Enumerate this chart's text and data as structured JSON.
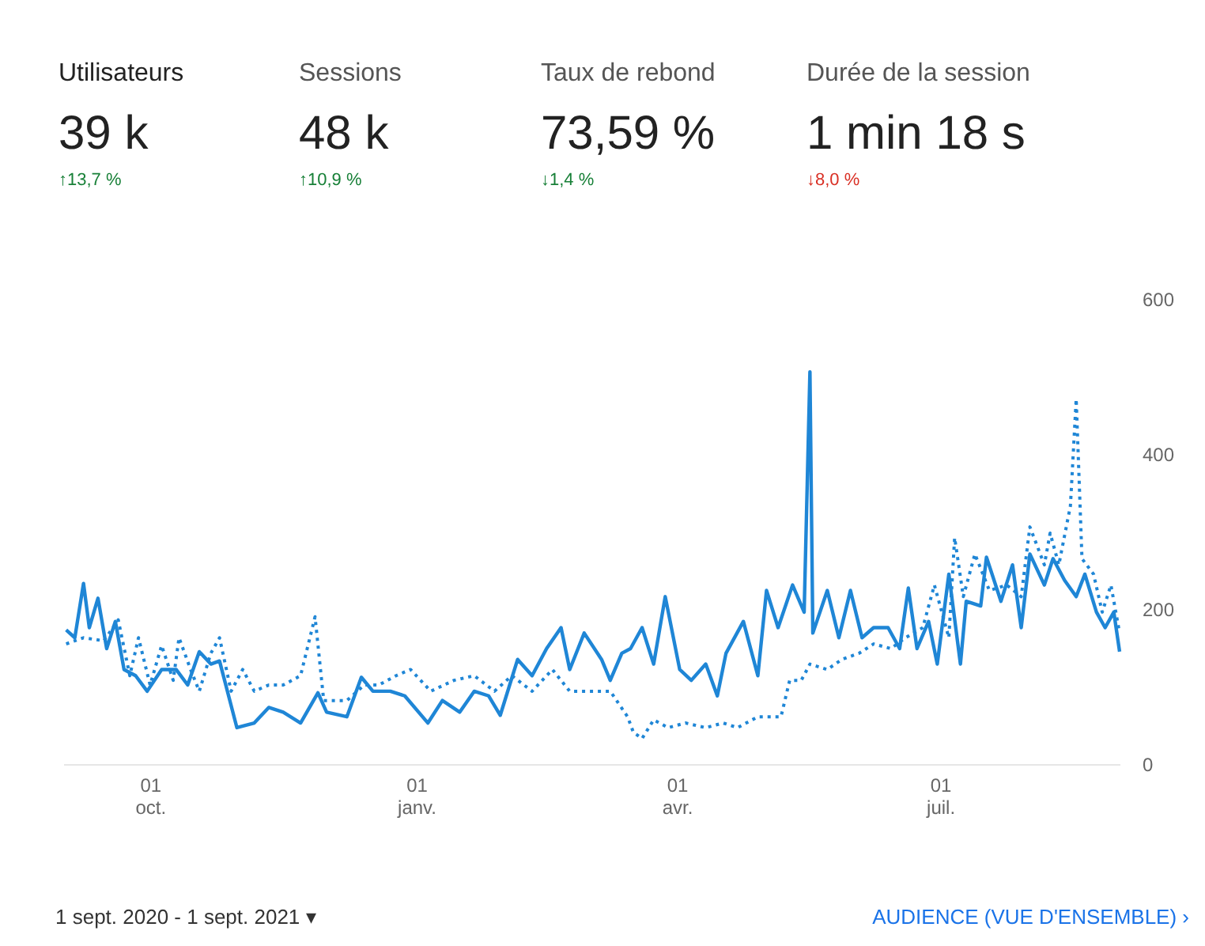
{
  "chart_data": {
    "type": "line",
    "annotations": [
      "Utilisateurs",
      "39 k",
      "↑13,7 %",
      "Sessions",
      "48 k",
      "↑10,9 %",
      "Taux de rebond",
      "73,59 %",
      "↓1,4 %",
      "Durée de la session",
      "1 min 18 s",
      "↓8,0 %",
      "1 sept. 2020 - 1 sept. 2021 ▾",
      "AUDIENCE (VUE D'ENSEMBLE) ›"
    ],
    "xlim": [
      "2020-09-01",
      "2021-09-01"
    ],
    "xticks": [
      {
        "value": "2020-10-01",
        "label": "01\noct."
      },
      {
        "value": "2021-01-01",
        "label": "01\njanv."
      },
      {
        "value": "2021-04-01",
        "label": "01\navr."
      },
      {
        "value": "2021-07-01",
        "label": "01\njuil."
      }
    ],
    "ylim": [
      0,
      600
    ],
    "yticks": [
      0,
      200,
      400,
      600
    ],
    "grid": false,
    "series": [
      {
        "color": "#1f86d6",
        "line_style": "solid",
        "x": [
          "2020-09-02",
          "2020-09-05",
          "2020-09-08",
          "2020-09-10",
          "2020-09-13",
          "2020-09-16",
          "2020-09-19",
          "2020-09-22",
          "2020-09-26",
          "2020-09-30",
          "2020-10-05",
          "2020-10-10",
          "2020-10-14",
          "2020-10-18",
          "2020-10-22",
          "2020-10-25",
          "2020-10-31",
          "2020-11-06",
          "2020-11-11",
          "2020-11-16",
          "2020-11-22",
          "2020-11-28",
          "2020-12-01",
          "2020-12-08",
          "2020-12-13",
          "2020-12-17",
          "2020-12-23",
          "2020-12-28",
          "2021-01-05",
          "2021-01-10",
          "2021-01-16",
          "2021-01-21",
          "2021-01-26",
          "2021-01-30",
          "2021-02-05",
          "2021-02-10",
          "2021-02-15",
          "2021-02-20",
          "2021-02-23",
          "2021-02-28",
          "2021-03-06",
          "2021-03-09",
          "2021-03-13",
          "2021-03-16",
          "2021-03-20",
          "2021-03-24",
          "2021-03-28",
          "2021-04-02",
          "2021-04-06",
          "2021-04-11",
          "2021-04-15",
          "2021-04-18",
          "2021-04-24",
          "2021-04-29",
          "2021-05-02",
          "2021-05-06",
          "2021-05-11",
          "2021-05-15",
          "2021-05-17",
          "2021-05-18",
          "2021-05-23",
          "2021-05-27",
          "2021-05-31",
          "2021-06-04",
          "2021-06-08",
          "2021-06-13",
          "2021-06-17",
          "2021-06-20",
          "2021-06-23",
          "2021-06-27",
          "2021-06-30",
          "2021-07-04",
          "2021-07-08",
          "2021-07-10",
          "2021-07-15",
          "2021-07-17",
          "2021-07-22",
          "2021-07-26",
          "2021-07-29",
          "2021-08-01",
          "2021-08-06",
          "2021-08-09",
          "2021-08-13",
          "2021-08-17",
          "2021-08-20",
          "2021-08-24",
          "2021-08-27",
          "2021-08-30",
          "2021-09-01"
        ],
        "values": [
          173,
          163,
          233,
          176,
          214,
          149,
          184,
          122,
          114,
          94,
          122,
          122,
          102,
          145,
          129,
          133,
          47,
          53,
          73,
          67,
          53,
          92,
          67,
          61,
          112,
          94,
          94,
          88,
          53,
          82,
          67,
          94,
          88,
          63,
          135,
          114,
          149,
          176,
          122,
          169,
          135,
          108,
          143,
          149,
          176,
          129,
          216,
          122,
          108,
          129,
          88,
          143,
          184,
          114,
          224,
          176,
          231,
          196,
          506,
          169,
          224,
          163,
          224,
          163,
          176,
          176,
          149,
          227,
          149,
          184,
          129,
          245,
          129,
          210,
          204,
          267,
          210,
          257,
          176,
          271,
          231,
          265,
          237,
          216,
          245,
          196,
          176,
          196,
          145
        ]
      },
      {
        "color": "#1f86d6",
        "line_style": "dotted",
        "x": [
          "2020-09-02",
          "2020-09-08",
          "2020-09-15",
          "2020-09-20",
          "2020-09-24",
          "2020-09-27",
          "2020-10-01",
          "2020-10-05",
          "2020-10-09",
          "2020-10-11",
          "2020-10-15",
          "2020-10-18",
          "2020-10-22",
          "2020-10-25",
          "2020-10-29",
          "2020-11-02",
          "2020-11-06",
          "2020-11-11",
          "2020-11-16",
          "2020-11-22",
          "2020-11-27",
          "2020-11-30",
          "2020-12-08",
          "2020-12-14",
          "2020-12-19",
          "2020-12-25",
          "2020-12-30",
          "2021-01-06",
          "2021-01-14",
          "2021-01-21",
          "2021-01-28",
          "2021-02-03",
          "2021-02-10",
          "2021-02-17",
          "2021-02-23",
          "2021-03-02",
          "2021-03-09",
          "2021-03-15",
          "2021-03-17",
          "2021-03-20",
          "2021-03-24",
          "2021-03-29",
          "2021-04-04",
          "2021-04-11",
          "2021-04-17",
          "2021-04-22",
          "2021-04-29",
          "2021-05-07",
          "2021-05-10",
          "2021-05-14",
          "2021-05-17",
          "2021-05-23",
          "2021-05-28",
          "2021-06-03",
          "2021-06-08",
          "2021-06-14",
          "2021-06-19",
          "2021-06-25",
          "2021-06-29",
          "2021-07-04",
          "2021-07-06",
          "2021-07-09",
          "2021-07-13",
          "2021-07-18",
          "2021-07-24",
          "2021-07-29",
          "2021-08-01",
          "2021-08-06",
          "2021-08-08",
          "2021-08-11",
          "2021-08-15",
          "2021-08-17",
          "2021-08-19",
          "2021-08-23",
          "2021-08-26",
          "2021-08-29",
          "2021-09-01"
        ],
        "values": [
          155,
          163,
          159,
          186,
          114,
          163,
          102,
          153,
          108,
          163,
          122,
          94,
          143,
          163,
          94,
          122,
          94,
          102,
          102,
          114,
          190,
          82,
          82,
          102,
          102,
          114,
          122,
          94,
          108,
          114,
          94,
          114,
          94,
          122,
          94,
          94,
          94,
          61,
          41,
          33,
          57,
          47,
          53,
          47,
          53,
          47,
          61,
          61,
          108,
          108,
          129,
          122,
          135,
          143,
          155,
          149,
          163,
          176,
          231,
          163,
          292,
          216,
          271,
          224,
          231,
          216,
          306,
          257,
          298,
          257,
          333,
          471,
          265,
          245,
          196,
          231,
          169
        ]
      }
    ]
  }
}
